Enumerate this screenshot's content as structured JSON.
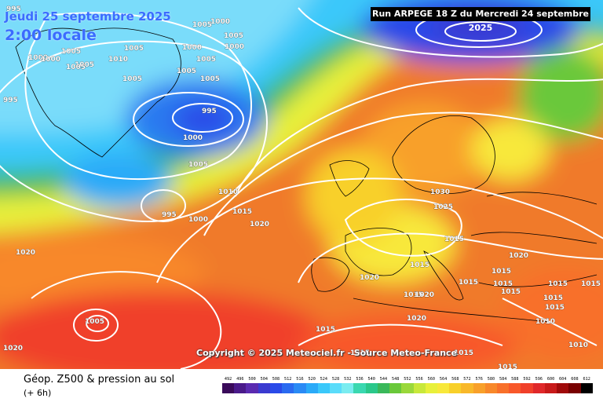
{
  "header": {
    "date_line": "Jeudi 25 septembre 2025",
    "time_line": "2:00 locale",
    "run_info": "Run ARPEGE 18 Z du Mercredi 24 septembre 2025"
  },
  "map": {
    "pressure_unit": "hPa",
    "isobar_color": "#ffffff",
    "pressure_labels": [
      {
        "text": "995"
      },
      {
        "text": "1005"
      },
      {
        "text": "1000"
      },
      {
        "text": "1005"
      },
      {
        "text": "1000"
      },
      {
        "text": "1005"
      },
      {
        "text": "1010"
      },
      {
        "text": "1005"
      },
      {
        "text": "1000"
      },
      {
        "text": "1005"
      },
      {
        "text": "995"
      },
      {
        "text": "1000"
      },
      {
        "text": "1005"
      },
      {
        "text": "1005"
      },
      {
        "text": "1005"
      },
      {
        "text": "1005"
      },
      {
        "text": "1000"
      },
      {
        "text": "1005"
      },
      {
        "text": "1010"
      },
      {
        "text": "1005"
      },
      {
        "text": "995"
      },
      {
        "text": "1000"
      },
      {
        "text": "1005"
      },
      {
        "text": "1010"
      },
      {
        "text": "995"
      },
      {
        "text": "1000"
      },
      {
        "text": "1015"
      },
      {
        "text": "1020"
      },
      {
        "text": "1020"
      },
      {
        "text": "1005"
      },
      {
        "text": "1000"
      },
      {
        "text": "1020"
      },
      {
        "text": "1030"
      },
      {
        "text": "1025"
      },
      {
        "text": "1015"
      },
      {
        "text": "1015"
      },
      {
        "text": "1020"
      },
      {
        "text": "1015"
      },
      {
        "text": "1015"
      },
      {
        "text": "1020"
      },
      {
        "text": "1015"
      },
      {
        "text": "1015"
      },
      {
        "text": "1015"
      },
      {
        "text": "1020"
      },
      {
        "text": "1015"
      },
      {
        "text": "1015"
      },
      {
        "text": "1015"
      },
      {
        "text": "1015"
      },
      {
        "text": "1010"
      },
      {
        "text": "1015"
      },
      {
        "text": "1020"
      },
      {
        "text": "1015"
      },
      {
        "text": "1010"
      },
      {
        "text": "1015"
      },
      {
        "text": "1015"
      }
    ]
  },
  "copyright": "Copyright © 2025 Meteociel.fr - Source Meteo-France",
  "footer": {
    "product_title": "Géop. Z500 & pression au sol",
    "lead_time": "(+ 6h)"
  },
  "color_scale": {
    "labels": [
      "492",
      "496",
      "500",
      "504",
      "508",
      "512",
      "516",
      "520",
      "524",
      "528",
      "532",
      "536",
      "540",
      "544",
      "548",
      "552",
      "556",
      "560",
      "564",
      "568",
      "572",
      "576",
      "580",
      "584",
      "588",
      "592",
      "596",
      "600",
      "604",
      "608",
      "612"
    ],
    "colors": [
      "#3a0a5a",
      "#4a1a8a",
      "#5a2ab0",
      "#3a3ad0",
      "#2a4ae8",
      "#2a6af0",
      "#2a8af5",
      "#2aaaf8",
      "#3ac8fa",
      "#5adcfa",
      "#7aecf0",
      "#3ad8b0",
      "#2ac88a",
      "#3ab85a",
      "#6ac83a",
      "#9ad83a",
      "#c8e83a",
      "#e8f03a",
      "#f8e83a",
      "#f8d02a",
      "#f8b82a",
      "#f8a02a",
      "#f8882a",
      "#f8702a",
      "#f8582a",
      "#f0402a",
      "#e0282a",
      "#c81a1a",
      "#a00a0a",
      "#780000",
      "#000000"
    ]
  }
}
